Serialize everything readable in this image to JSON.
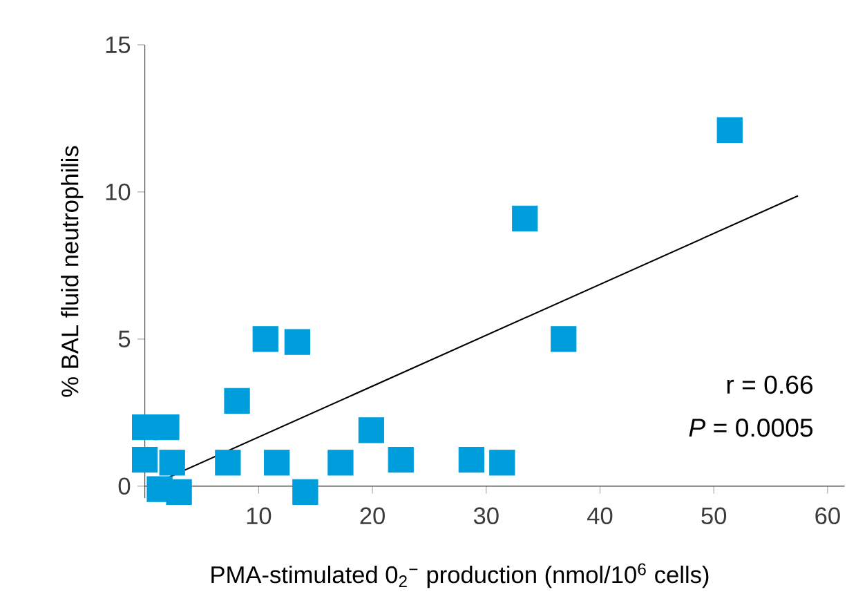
{
  "chart_data": {
    "type": "scatter",
    "xlabel": "PMA-stimulated 0$_{2}$$^{−}$ production  (nmol/10$^{6}$ cells)",
    "ylabel": "% BAL fluid neutrophilis",
    "xlim": [
      0,
      61.5
    ],
    "ylim": [
      -0.4,
      15
    ],
    "xticks": [
      10,
      20,
      30,
      40,
      50,
      60
    ],
    "yticks": [
      0,
      5,
      10,
      15
    ],
    "series": [
      {
        "type": "scatter",
        "marker": "square",
        "color": "#009ddc",
        "x": [
          0,
          1.9,
          0,
          2.4,
          1.3,
          3.0,
          7.3,
          8.1,
          10.6,
          13.4,
          11.6,
          14.1,
          17.2,
          19.9,
          22.5,
          28.7,
          31.4,
          33.4,
          36.8,
          51.4
        ],
        "values": [
          2.0,
          2.0,
          0.9,
          0.8,
          -0.1,
          -0.2,
          0.8,
          2.9,
          5.0,
          4.9,
          0.8,
          -0.2,
          0.8,
          1.9,
          0.9,
          0.9,
          0.8,
          9.1,
          5.0,
          12.1
        ]
      },
      {
        "type": "line",
        "marker": "none",
        "color": "#000000",
        "x": [
          2.2,
          57.4
        ],
        "values": [
          0.32,
          9.87
        ]
      }
    ],
    "annotations": [
      "r = 0.66",
      "*P* = 0.0005"
    ]
  }
}
